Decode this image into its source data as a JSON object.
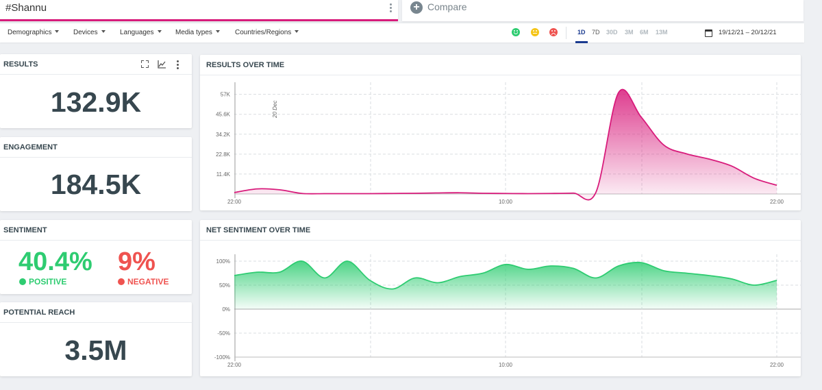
{
  "search": {
    "query": "#Shannu"
  },
  "compare": {
    "label": "Compare"
  },
  "filters": [
    "Demographics",
    "Devices",
    "Languages",
    "Media types",
    "Countries/Regions"
  ],
  "time_ranges": {
    "items": [
      "1D",
      "7D",
      "30D",
      "3M",
      "6M",
      "13M"
    ],
    "active": "1D"
  },
  "date_range": "19/12/21 – 20/12/21",
  "colors": {
    "brand": "#d81b7b",
    "positive": "#2ecc71",
    "neutral": "#f5c518",
    "negative": "#ef5350",
    "active_range": "#1a3a8f"
  },
  "results": {
    "title": "RESULTS",
    "value": "132.9K"
  },
  "engagement": {
    "title": "ENGAGEMENT",
    "value": "184.5K"
  },
  "sentiment": {
    "title": "SENTIMENT",
    "positive_value": "40.4%",
    "positive_label": "POSITIVE",
    "negative_value": "9%",
    "negative_label": "NEGATIVE"
  },
  "reach": {
    "title": "POTENTIAL REACH",
    "value": "3.5M"
  },
  "chart_data": [
    {
      "type": "area",
      "title": "RESULTS OVER TIME",
      "annotation": "20 Dec",
      "x_ticks": [
        "22:00",
        "10:00",
        "22:00"
      ],
      "y_ticks": [
        "11.4K",
        "22.8K",
        "34.2K",
        "45.6K",
        "57K"
      ],
      "ylim": [
        0,
        60000
      ],
      "x": [
        0,
        1,
        2,
        3,
        4,
        5,
        6,
        7,
        8,
        9,
        10,
        11,
        12,
        13,
        14,
        15,
        16,
        17,
        18,
        19,
        20,
        21,
        22,
        23,
        24
      ],
      "values": [
        800,
        2900,
        2400,
        300,
        200,
        200,
        200,
        300,
        400,
        600,
        700,
        400,
        300,
        200,
        300,
        500,
        1000,
        58000,
        44000,
        28000,
        23000,
        20000,
        16000,
        9000,
        5000
      ],
      "series": [
        {
          "values": [
            800,
            2900,
            2400,
            300,
            200,
            200,
            200,
            300,
            400,
            600,
            700,
            400,
            300,
            200,
            300,
            500,
            1000,
            58000,
            44000,
            28000,
            23000,
            20000,
            16000,
            9000,
            5000
          ]
        }
      ],
      "color": "#d81b7b",
      "grid": true
    },
    {
      "type": "area",
      "title": "NET SENTIMENT OVER TIME",
      "x_ticks": [
        "22:00",
        "10:00",
        "22:00"
      ],
      "y_ticks": [
        "100%",
        "50%",
        "0%",
        "-50%",
        "-100%"
      ],
      "ylim": [
        -100,
        100
      ],
      "x": [
        0,
        1,
        2,
        3,
        4,
        5,
        6,
        7,
        8,
        9,
        10,
        11,
        12,
        13,
        14,
        15,
        16,
        17,
        18,
        19,
        20,
        21,
        22,
        23,
        24
      ],
      "values": [
        70,
        77,
        77,
        100,
        65,
        100,
        60,
        42,
        65,
        55,
        68,
        75,
        93,
        83,
        90,
        85,
        65,
        90,
        97,
        80,
        75,
        70,
        63,
        50,
        60
      ],
      "series": [
        {
          "values": [
            70,
            77,
            77,
            100,
            65,
            100,
            60,
            42,
            65,
            55,
            68,
            75,
            93,
            83,
            90,
            85,
            65,
            90,
            97,
            80,
            75,
            70,
            63,
            50,
            60
          ]
        }
      ],
      "color": "#2ecc71",
      "grid": true
    }
  ]
}
